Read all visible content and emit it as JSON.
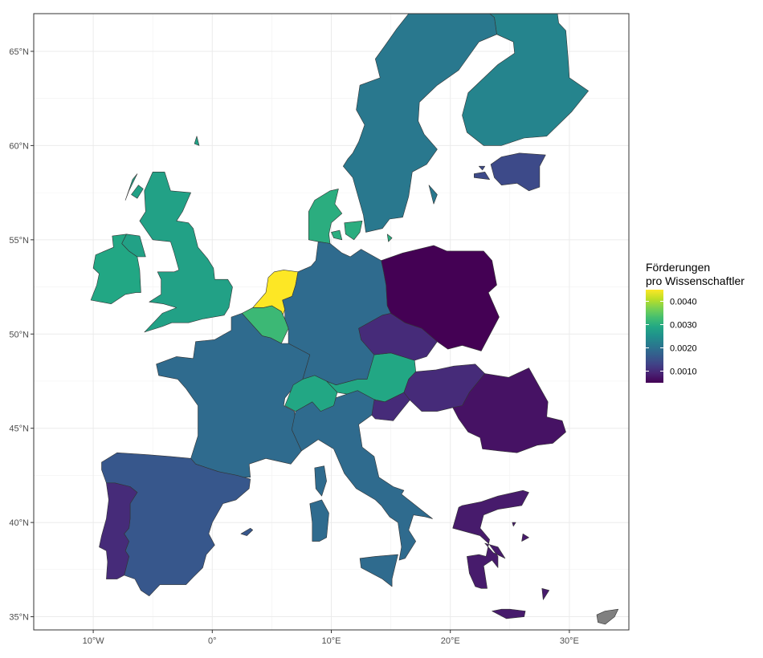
{
  "chart_data": {
    "type": "choropleth",
    "title": "",
    "xlabel": "",
    "ylabel": "",
    "x_ticks": [
      "10°W",
      "0°",
      "10°E",
      "20°E",
      "30°E"
    ],
    "x_tick_values": [
      -10,
      0,
      10,
      20,
      30
    ],
    "y_ticks": [
      "35°N",
      "40°N",
      "45°N",
      "50°N",
      "55°N",
      "60°N",
      "65°N"
    ],
    "y_tick_values": [
      35,
      40,
      45,
      50,
      55,
      60,
      65
    ],
    "xlim": [
      -15,
      35
    ],
    "ylim": [
      34.3,
      67
    ],
    "grid": true,
    "legend": {
      "title_line1": "Förderungen",
      "title_line2": "pro Wissenschaftler",
      "placement": "right",
      "labels": [
        "0.0040",
        "0.0030",
        "0.0020",
        "0.0010"
      ],
      "values": [
        0.004,
        0.003,
        0.002,
        0.001
      ],
      "min": 0.0005,
      "max": 0.0045,
      "colormap": "viridis"
    },
    "na_color": "#808080",
    "regions": [
      {
        "name": "Netherlands",
        "value": 0.0045
      },
      {
        "name": "Belgium",
        "value": 0.0032
      },
      {
        "name": "Denmark",
        "value": 0.003
      },
      {
        "name": "Ireland",
        "value": 0.0029
      },
      {
        "name": "United Kingdom",
        "value": 0.0028
      },
      {
        "name": "Austria",
        "value": 0.0029
      },
      {
        "name": "Finland",
        "value": 0.0023
      },
      {
        "name": "Sweden",
        "value": 0.0021
      },
      {
        "name": "Germany",
        "value": 0.0019
      },
      {
        "name": "France",
        "value": 0.0019
      },
      {
        "name": "Italy",
        "value": 0.0019
      },
      {
        "name": "Switzerland",
        "value": 0.0029
      },
      {
        "name": "Spain",
        "value": 0.0016
      },
      {
        "name": "Estonia",
        "value": 0.0014
      },
      {
        "name": "Portugal",
        "value": 0.001
      },
      {
        "name": "Czechia",
        "value": 0.001
      },
      {
        "name": "Hungary",
        "value": 0.001
      },
      {
        "name": "Slovenia",
        "value": 0.001
      },
      {
        "name": "Greece",
        "value": 0.0008
      },
      {
        "name": "Romania",
        "value": 0.0007
      },
      {
        "name": "Poland",
        "value": 0.0005
      },
      {
        "name": "Cyprus",
        "value": null
      }
    ]
  }
}
